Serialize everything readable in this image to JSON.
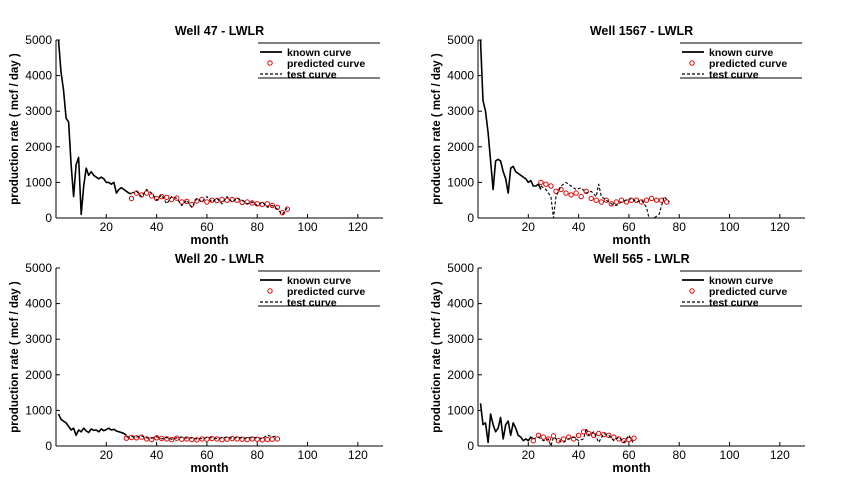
{
  "chart_data": [
    {
      "type": "line",
      "title": "Well 47 - LWLR",
      "xlabel": "month",
      "ylabel": "production rate ( mcf / day )",
      "xlim": [
        0,
        130
      ],
      "ylim": [
        0,
        5000
      ],
      "xticks": [
        20,
        40,
        60,
        80,
        100,
        120
      ],
      "yticks": [
        0,
        1000,
        2000,
        3000,
        4000,
        5000
      ],
      "legend": [
        "known curve",
        "predicted curve",
        "test curve"
      ],
      "legend_position": "top-right",
      "series": [
        {
          "name": "known curve",
          "style": "solid",
          "color": "#000000",
          "x": [
            1,
            2,
            3,
            4,
            5,
            6,
            7,
            8,
            9,
            10,
            11,
            12,
            13,
            14,
            15,
            16,
            17,
            18,
            19,
            20,
            21,
            22,
            23,
            24,
            25,
            26,
            27,
            28,
            29,
            30
          ],
          "y": [
            5000,
            4100,
            3600,
            2800,
            2700,
            1500,
            600,
            1500,
            1700,
            100,
            900,
            1400,
            1200,
            1300,
            1200,
            1150,
            1100,
            1150,
            1100,
            1000,
            1000,
            950,
            1000,
            700,
            800,
            850,
            800,
            750,
            700,
            680
          ]
        },
        {
          "name": "predicted curve",
          "style": "circles",
          "color": "#e00000",
          "x": [
            30,
            32,
            34,
            36,
            38,
            40,
            42,
            44,
            46,
            48,
            50,
            52,
            54,
            56,
            58,
            60,
            62,
            64,
            66,
            68,
            70,
            72,
            74,
            76,
            78,
            80,
            82,
            84,
            86,
            88,
            90,
            92
          ],
          "y": [
            550,
            700,
            650,
            700,
            620,
            550,
            600,
            580,
            520,
            560,
            450,
            470,
            380,
            480,
            520,
            450,
            500,
            490,
            520,
            500,
            520,
            500,
            440,
            450,
            420,
            400,
            380,
            400,
            350,
            300,
            150,
            250
          ]
        },
        {
          "name": "test curve",
          "style": "dashed",
          "color": "#000000",
          "x": [
            30,
            32,
            34,
            36,
            38,
            40,
            42,
            44,
            46,
            48,
            50,
            52,
            54,
            56,
            58,
            60,
            62,
            64,
            66,
            68,
            70,
            72,
            74,
            76,
            78,
            80,
            82,
            84,
            86,
            88,
            90,
            92
          ],
          "y": [
            700,
            750,
            600,
            800,
            700,
            500,
            650,
            400,
            600,
            550,
            350,
            500,
            300,
            550,
            450,
            600,
            450,
            550,
            400,
            600,
            450,
            550,
            500,
            400,
            450,
            350,
            450,
            300,
            350,
            250,
            100,
            300
          ]
        }
      ]
    },
    {
      "type": "line",
      "title": "Well 1567 - LWLR",
      "xlabel": "month",
      "ylabel": "production rate ( mcf / day )",
      "xlim": [
        0,
        130
      ],
      "ylim": [
        0,
        5000
      ],
      "xticks": [
        20,
        40,
        60,
        80,
        100,
        120
      ],
      "yticks": [
        0,
        1000,
        2000,
        3000,
        4000,
        5000
      ],
      "legend": [
        "known curve",
        "predicted curve",
        "test curve"
      ],
      "legend_position": "top-right",
      "series": [
        {
          "name": "known curve",
          "style": "solid",
          "color": "#000000",
          "x": [
            1,
            2,
            3,
            4,
            5,
            6,
            7,
            8,
            9,
            10,
            11,
            12,
            13,
            14,
            15,
            16,
            17,
            18,
            19,
            20,
            21,
            22,
            23,
            24,
            25
          ],
          "y": [
            5000,
            3300,
            3000,
            2400,
            1600,
            800,
            1600,
            1650,
            1600,
            1300,
            1100,
            700,
            1400,
            1450,
            1300,
            1250,
            1200,
            1150,
            1100,
            1000,
            1050,
            900,
            900,
            950,
            800
          ]
        },
        {
          "name": "predicted curve",
          "style": "circles",
          "color": "#e00000",
          "x": [
            25,
            27,
            29,
            31,
            33,
            35,
            37,
            39,
            41,
            43,
            45,
            47,
            49,
            51,
            53,
            55,
            57,
            59,
            61,
            63,
            65,
            67,
            69,
            71,
            73,
            75
          ],
          "y": [
            1000,
            950,
            900,
            750,
            800,
            700,
            650,
            700,
            600,
            750,
            550,
            500,
            450,
            500,
            400,
            450,
            500,
            450,
            500,
            500,
            450,
            500,
            550,
            500,
            500,
            450
          ]
        },
        {
          "name": "test curve",
          "style": "dashed",
          "color": "#000000",
          "x": [
            25,
            27,
            29,
            30,
            31,
            33,
            35,
            37,
            39,
            41,
            43,
            45,
            47,
            48,
            49,
            51,
            53,
            55,
            57,
            59,
            61,
            63,
            65,
            67,
            68,
            70,
            72,
            74,
            76
          ],
          "y": [
            900,
            800,
            600,
            0,
            600,
            900,
            1000,
            900,
            800,
            850,
            700,
            750,
            600,
            950,
            600,
            500,
            400,
            350,
            450,
            500,
            550,
            450,
            500,
            300,
            0,
            0,
            100,
            600,
            450
          ]
        }
      ]
    },
    {
      "type": "line",
      "title": "Well 20 - LWLR",
      "xlabel": "month",
      "ylabel": "production rate ( mcf / day )",
      "xlim": [
        0,
        130
      ],
      "ylim": [
        0,
        5000
      ],
      "xticks": [
        20,
        40,
        60,
        80,
        100,
        120
      ],
      "yticks": [
        0,
        1000,
        2000,
        3000,
        4000,
        5000
      ],
      "legend": [
        "known curve",
        "predicted curve",
        "test curve"
      ],
      "legend_position": "top-right",
      "series": [
        {
          "name": "known curve",
          "style": "solid",
          "color": "#000000",
          "x": [
            1,
            2,
            3,
            4,
            5,
            6,
            7,
            8,
            9,
            10,
            11,
            12,
            13,
            14,
            15,
            16,
            17,
            18,
            19,
            20,
            21,
            22,
            23,
            24,
            25,
            26,
            27,
            28
          ],
          "y": [
            900,
            750,
            700,
            650,
            550,
            450,
            500,
            300,
            450,
            400,
            500,
            420,
            380,
            480,
            440,
            450,
            400,
            480,
            430,
            460,
            500,
            450,
            470,
            420,
            400,
            380,
            350,
            300
          ]
        },
        {
          "name": "predicted curve",
          "style": "circles",
          "color": "#e00000",
          "x": [
            28,
            30,
            32,
            34,
            36,
            38,
            40,
            42,
            44,
            46,
            48,
            50,
            52,
            54,
            56,
            58,
            60,
            62,
            64,
            66,
            68,
            70,
            72,
            74,
            76,
            78,
            80,
            82,
            84,
            86,
            88
          ],
          "y": [
            220,
            240,
            230,
            250,
            200,
            180,
            230,
            210,
            200,
            180,
            220,
            190,
            200,
            180,
            170,
            200,
            190,
            210,
            200,
            180,
            190,
            210,
            200,
            190,
            180,
            200,
            190,
            170,
            180,
            190,
            200
          ]
        },
        {
          "name": "test curve",
          "style": "dashed",
          "color": "#000000",
          "x": [
            28,
            30,
            32,
            34,
            36,
            38,
            40,
            42,
            44,
            46,
            48,
            50,
            52,
            54,
            56,
            58,
            60,
            62,
            64,
            66,
            68,
            70,
            72,
            74,
            76,
            78,
            80,
            82,
            84,
            86,
            88
          ],
          "y": [
            250,
            260,
            250,
            280,
            230,
            220,
            260,
            200,
            240,
            190,
            230,
            250,
            220,
            230,
            200,
            210,
            240,
            230,
            210,
            230,
            250,
            220,
            240,
            230,
            220,
            240,
            230,
            210,
            300,
            260,
            280
          ]
        }
      ]
    },
    {
      "type": "line",
      "title": "Well 565 - LWLR",
      "xlabel": "month",
      "ylabel": "production rate ( mcf / day )",
      "xlim": [
        0,
        130
      ],
      "ylim": [
        0,
        5000
      ],
      "xticks": [
        20,
        40,
        60,
        80,
        100,
        120
      ],
      "yticks": [
        0,
        1000,
        2000,
        3000,
        4000,
        5000
      ],
      "legend": [
        "known curve",
        "predicted curve",
        "test curve"
      ],
      "legend_position": "top-right",
      "series": [
        {
          "name": "known curve",
          "style": "solid",
          "color": "#000000",
          "x": [
            1,
            2,
            3,
            4,
            5,
            6,
            7,
            8,
            9,
            10,
            11,
            12,
            13,
            14,
            15,
            16,
            17,
            18,
            19,
            20,
            21,
            22
          ],
          "y": [
            1200,
            600,
            650,
            100,
            900,
            600,
            400,
            500,
            800,
            200,
            600,
            700,
            300,
            650,
            500,
            300,
            250,
            150,
            200,
            150,
            250,
            200
          ]
        },
        {
          "name": "predicted curve",
          "style": "circles",
          "color": "#e00000",
          "x": [
            22,
            24,
            26,
            28,
            30,
            32,
            34,
            36,
            38,
            40,
            42,
            44,
            46,
            48,
            50,
            52,
            54,
            56,
            58,
            60,
            62
          ],
          "y": [
            150,
            300,
            250,
            200,
            280,
            150,
            200,
            250,
            200,
            300,
            400,
            350,
            300,
            350,
            320,
            300,
            250,
            200,
            150,
            180,
            220
          ]
        },
        {
          "name": "test curve",
          "style": "dashed",
          "color": "#000000",
          "x": [
            22,
            24,
            26,
            28,
            29,
            30,
            32,
            34,
            36,
            38,
            40,
            42,
            43,
            44,
            46,
            48,
            50,
            52,
            54,
            56,
            58,
            60,
            62
          ],
          "y": [
            200,
            250,
            150,
            200,
            0,
            250,
            150,
            100,
            200,
            250,
            150,
            200,
            500,
            300,
            400,
            100,
            350,
            300,
            150,
            250,
            100,
            300,
            50
          ]
        }
      ]
    }
  ]
}
